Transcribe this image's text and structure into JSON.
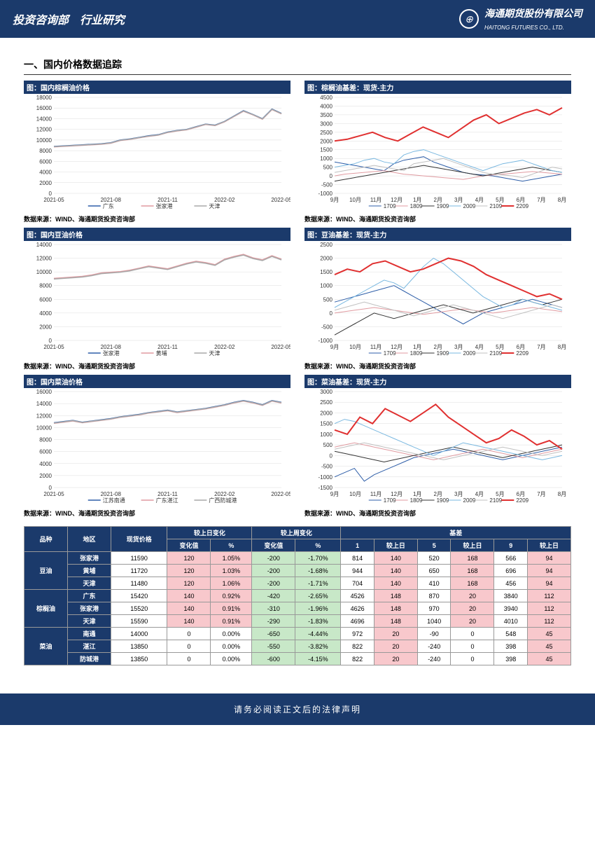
{
  "header": {
    "left": "投资咨询部　行业研究",
    "company_cn": "海通期货股份有限公司",
    "company_en": "HAITONG FUTURES CO., LTD."
  },
  "section_title": "一、国内价格数据追踪",
  "source": "数据来源：WIND、海通期货投资咨询部",
  "charts": [
    {
      "title": "图：国内棕榈油价格",
      "ylim": [
        0,
        18000
      ],
      "ystep": 2000,
      "xlabels": [
        "2021-05",
        "2021-08",
        "2021-11",
        "2022-02",
        "2022-05"
      ],
      "series": [
        {
          "name": "广东",
          "color": "#2e5ea8",
          "w": 1.5,
          "d": [
            8800,
            8900,
            9000,
            9100,
            9200,
            9300,
            9500,
            10000,
            10200,
            10500,
            10800,
            11000,
            11500,
            11800,
            12000,
            12500,
            13000,
            12800,
            13500,
            14500,
            15500,
            14800,
            14000,
            15800,
            15000
          ]
        },
        {
          "name": "张家港",
          "color": "#e09aa0",
          "w": 1.5,
          "d": [
            8700,
            8800,
            8900,
            9000,
            9100,
            9200,
            9400,
            9900,
            10100,
            10400,
            10700,
            10900,
            11400,
            11700,
            11900,
            12400,
            12900,
            12700,
            13400,
            14400,
            15400,
            14700,
            13900,
            15700,
            14900
          ]
        },
        {
          "name": "天津",
          "color": "#a9a9a9",
          "w": 1.5,
          "d": [
            8750,
            8850,
            8950,
            9050,
            9150,
            9250,
            9450,
            9950,
            10150,
            10450,
            10750,
            10950,
            11450,
            11750,
            11950,
            12450,
            12950,
            12750,
            13450,
            14450,
            15450,
            14750,
            13950,
            15750,
            14950
          ]
        }
      ]
    },
    {
      "title": "图：棕榈油基差：现货-主力",
      "ylim": [
        -1000,
        4500
      ],
      "ystep": 500,
      "xlabels": [
        "9月",
        "10月",
        "11月",
        "12月",
        "1月",
        "2月",
        "3月",
        "4月",
        "5月",
        "6月",
        "7月",
        "8月"
      ],
      "series": [
        {
          "name": "1709",
          "color": "#2e5ea8",
          "w": 1,
          "d": [
            800,
            700,
            600,
            500,
            400,
            300,
            700,
            900,
            1000,
            1100,
            800,
            600,
            400,
            200,
            100,
            50,
            0,
            -100,
            -200,
            -300,
            -200,
            -100,
            0,
            100
          ]
        },
        {
          "name": "1809",
          "color": "#e09aa0",
          "w": 1,
          "d": [
            0,
            100,
            150,
            200,
            250,
            300,
            200,
            100,
            50,
            0,
            -50,
            -100,
            -150,
            -200,
            -100,
            0,
            50,
            100,
            150,
            200,
            250,
            200,
            150,
            100
          ]
        },
        {
          "name": "1909",
          "color": "#333",
          "w": 1,
          "d": [
            -300,
            -200,
            -100,
            0,
            100,
            200,
            300,
            400,
            500,
            600,
            500,
            400,
            300,
            200,
            100,
            0,
            100,
            200,
            300,
            400,
            500,
            400,
            300,
            200
          ]
        },
        {
          "name": "2009",
          "color": "#7ab8e0",
          "w": 1,
          "d": [
            500,
            600,
            700,
            900,
            1000,
            800,
            700,
            1200,
            1400,
            1500,
            1300,
            1100,
            900,
            700,
            500,
            300,
            500,
            700,
            800,
            900,
            700,
            500,
            300,
            200
          ]
        },
        {
          "name": "2109",
          "color": "#c0c0c0",
          "w": 1,
          "d": [
            200,
            300,
            400,
            500,
            600,
            500,
            400,
            300,
            700,
            800,
            900,
            1000,
            800,
            600,
            400,
            200,
            100,
            50,
            0,
            -100,
            100,
            300,
            500,
            400
          ]
        },
        {
          "name": "2209",
          "color": "#e03030",
          "w": 2,
          "d": [
            2000,
            2100,
            2300,
            2500,
            2200,
            2000,
            2400,
            2800,
            2500,
            2200,
            2700,
            3200,
            3500,
            3000,
            3300,
            3600,
            3800,
            3500,
            3900
          ]
        }
      ]
    },
    {
      "title": "图：国内豆油价格",
      "ylim": [
        0,
        14000
      ],
      "ystep": 2000,
      "xlabels": [
        "2021-05",
        "2021-08",
        "2021-11",
        "2022-02",
        "2022-05"
      ],
      "series": [
        {
          "name": "张家港",
          "color": "#2e5ea8",
          "w": 1.5,
          "d": [
            9000,
            9100,
            9200,
            9300,
            9500,
            9800,
            9900,
            10000,
            10200,
            10500,
            10800,
            10600,
            10400,
            10800,
            11200,
            11500,
            11300,
            11000,
            11800,
            12200,
            12500,
            12000,
            11700,
            12300,
            11800
          ]
        },
        {
          "name": "黄埔",
          "color": "#e09aa0",
          "w": 1.5,
          "d": [
            9050,
            9150,
            9250,
            9350,
            9550,
            9850,
            9950,
            10050,
            10250,
            10550,
            10850,
            10650,
            10450,
            10850,
            11250,
            11550,
            11350,
            11050,
            11850,
            12250,
            12550,
            12050,
            11750,
            12350,
            11850
          ]
        },
        {
          "name": "天津",
          "color": "#a9a9a9",
          "w": 1.5,
          "d": [
            8950,
            9050,
            9150,
            9250,
            9450,
            9750,
            9850,
            9950,
            10150,
            10450,
            10750,
            10550,
            10350,
            10750,
            11150,
            11450,
            11250,
            10950,
            11750,
            12150,
            12450,
            11950,
            11650,
            12250,
            11750
          ]
        }
      ]
    },
    {
      "title": "图：豆油基差：现货-主力",
      "ylim": [
        -1000,
        2500
      ],
      "ystep": 500,
      "xlabels": [
        "9月",
        "10月",
        "11月",
        "12月",
        "1月",
        "2月",
        "3月",
        "4月",
        "5月",
        "6月",
        "7月",
        "8月"
      ],
      "series": [
        {
          "name": "1709",
          "color": "#2e5ea8",
          "w": 1,
          "d": [
            400,
            500,
            600,
            700,
            800,
            900,
            1000,
            800,
            600,
            400,
            200,
            0,
            -200,
            -400,
            -200,
            0,
            100,
            200,
            300,
            400,
            500,
            400,
            300,
            200
          ]
        },
        {
          "name": "1809",
          "color": "#e09aa0",
          "w": 1,
          "d": [
            0,
            50,
            100,
            150,
            200,
            150,
            100,
            50,
            0,
            -50,
            0,
            50,
            100,
            150,
            100,
            50,
            0,
            50,
            100,
            150,
            200,
            150,
            100,
            50
          ]
        },
        {
          "name": "1909",
          "color": "#333",
          "w": 1,
          "d": [
            -800,
            -600,
            -400,
            -200,
            0,
            -100,
            -200,
            -100,
            0,
            100,
            200,
            300,
            200,
            100,
            0,
            100,
            200,
            300,
            400,
            500,
            400,
            300,
            400,
            500
          ]
        },
        {
          "name": "2009",
          "color": "#7ab8e0",
          "w": 1,
          "d": [
            200,
            400,
            600,
            800,
            1000,
            1200,
            1100,
            900,
            1300,
            1700,
            2000,
            1800,
            1500,
            1200,
            900,
            600,
            400,
            200,
            300,
            500,
            400,
            300,
            200,
            100
          ]
        },
        {
          "name": "2109",
          "color": "#c0c0c0",
          "w": 1,
          "d": [
            100,
            200,
            300,
            400,
            300,
            200,
            100,
            0,
            -100,
            0,
            100,
            200,
            300,
            200,
            100,
            0,
            -100,
            -200,
            -100,
            0,
            100,
            200,
            300,
            200
          ]
        },
        {
          "name": "2209",
          "color": "#e03030",
          "w": 2,
          "d": [
            1400,
            1600,
            1500,
            1800,
            1900,
            1700,
            1500,
            1600,
            1800,
            2000,
            1900,
            1700,
            1400,
            1200,
            1000,
            800,
            600,
            700,
            500
          ]
        }
      ]
    },
    {
      "title": "图：国内菜油价格",
      "ylim": [
        0,
        16000
      ],
      "ystep": 2000,
      "xlabels": [
        "2021-05",
        "2021-08",
        "2021-11",
        "2022-02",
        "2022-05"
      ],
      "series": [
        {
          "name": "江苏南通",
          "color": "#2e5ea8",
          "w": 1.5,
          "d": [
            10800,
            11000,
            11200,
            10900,
            11100,
            11300,
            11500,
            11800,
            12000,
            12200,
            12500,
            12700,
            12900,
            12600,
            12800,
            13000,
            13200,
            13500,
            13800,
            14200,
            14500,
            14200,
            13800,
            14500,
            14200
          ]
        },
        {
          "name": "广东湛江",
          "color": "#e09aa0",
          "w": 1.5,
          "d": [
            10700,
            10900,
            11100,
            10800,
            11000,
            11200,
            11400,
            11700,
            11900,
            12100,
            12400,
            12600,
            12800,
            12500,
            12700,
            12900,
            13100,
            13400,
            13700,
            14100,
            14400,
            14100,
            13700,
            14400,
            14100
          ]
        },
        {
          "name": "广西防城港",
          "color": "#a9a9a9",
          "w": 1.5,
          "d": [
            10750,
            10950,
            11150,
            10850,
            11050,
            11250,
            11450,
            11750,
            11950,
            12150,
            12450,
            12650,
            12850,
            12550,
            12750,
            12950,
            13150,
            13450,
            13750,
            14150,
            14450,
            14150,
            13750,
            14450,
            14150
          ]
        }
      ]
    },
    {
      "title": "图：菜油基差：现货-主力",
      "ylim": [
        -1500,
        3000
      ],
      "ystep": 500,
      "xlabels": [
        "9月",
        "10月",
        "11月",
        "12月",
        "1月",
        "2月",
        "3月",
        "4月",
        "5月",
        "6月",
        "7月",
        "8月"
      ],
      "series": [
        {
          "name": "1709",
          "color": "#2e5ea8",
          "w": 1,
          "d": [
            -1000,
            -800,
            -600,
            -1200,
            -900,
            -700,
            -500,
            -300,
            -100,
            0,
            100,
            200,
            300,
            200,
            100,
            0,
            -100,
            -200,
            -100,
            0,
            100,
            200,
            300,
            400
          ]
        },
        {
          "name": "1809",
          "color": "#e09aa0",
          "w": 1,
          "d": [
            400,
            500,
            600,
            500,
            400,
            300,
            200,
            100,
            0,
            -100,
            -200,
            -100,
            0,
            100,
            200,
            300,
            200,
            100,
            0,
            -100,
            0,
            100,
            200,
            300
          ]
        },
        {
          "name": "1909",
          "color": "#333",
          "w": 1,
          "d": [
            200,
            100,
            0,
            -100,
            -200,
            -300,
            -200,
            -100,
            0,
            100,
            200,
            300,
            400,
            300,
            200,
            100,
            0,
            -100,
            0,
            100,
            200,
            300,
            400,
            500
          ]
        },
        {
          "name": "2009",
          "color": "#7ab8e0",
          "w": 1,
          "d": [
            1500,
            1700,
            1600,
            1400,
            1200,
            1000,
            800,
            600,
            400,
            200,
            0,
            200,
            400,
            600,
            500,
            400,
            300,
            200,
            100,
            0,
            -100,
            -200,
            -100,
            0
          ]
        },
        {
          "name": "2109",
          "color": "#c0c0c0",
          "w": 1,
          "d": [
            300,
            400,
            500,
            600,
            500,
            400,
            300,
            200,
            100,
            0,
            -100,
            -200,
            -100,
            0,
            100,
            200,
            300,
            400,
            300,
            200,
            100,
            0,
            100,
            200
          ]
        },
        {
          "name": "2209",
          "color": "#e03030",
          "w": 2,
          "d": [
            1200,
            1000,
            1800,
            1500,
            2200,
            1900,
            1600,
            2000,
            2400,
            1800,
            1400,
            1000,
            600,
            800,
            1200,
            900,
            500,
            700,
            300
          ]
        }
      ]
    }
  ],
  "table": {
    "hdr1": [
      "品种",
      "地区",
      "现货价格",
      "较上日变化",
      "",
      "较上周变化",
      "",
      "基差",
      "",
      "",
      "",
      "",
      ""
    ],
    "hdr2": [
      "",
      "",
      "",
      "变化值",
      "%",
      "变化值",
      "%",
      "1",
      "较上日",
      "5",
      "较上日",
      "9",
      "较上日"
    ],
    "groups": [
      {
        "name": "豆油",
        "rows": [
          [
            "张家港",
            "11590",
            "120",
            "1.05%",
            "-200",
            "-1.70%",
            "814",
            "140",
            "520",
            "168",
            "566",
            "94"
          ],
          [
            "黄埔",
            "11720",
            "120",
            "1.03%",
            "-200",
            "-1.68%",
            "944",
            "140",
            "650",
            "168",
            "696",
            "94"
          ],
          [
            "天津",
            "11480",
            "120",
            "1.06%",
            "-200",
            "-1.71%",
            "704",
            "140",
            "410",
            "168",
            "456",
            "94"
          ]
        ]
      },
      {
        "name": "棕榈油",
        "rows": [
          [
            "广东",
            "15420",
            "140",
            "0.92%",
            "-420",
            "-2.65%",
            "4526",
            "148",
            "870",
            "20",
            "3840",
            "112"
          ],
          [
            "张家港",
            "15520",
            "140",
            "0.91%",
            "-310",
            "-1.96%",
            "4626",
            "148",
            "970",
            "20",
            "3940",
            "112"
          ],
          [
            "天津",
            "15590",
            "140",
            "0.91%",
            "-290",
            "-1.83%",
            "4696",
            "148",
            "1040",
            "20",
            "4010",
            "112"
          ]
        ]
      },
      {
        "name": "菜油",
        "rows": [
          [
            "南通",
            "14000",
            "0",
            "0.00%",
            "-650",
            "-4.44%",
            "972",
            "20",
            "-90",
            "0",
            "548",
            "45"
          ],
          [
            "湛江",
            "13850",
            "0",
            "0.00%",
            "-550",
            "-3.82%",
            "822",
            "20",
            "-240",
            "0",
            "398",
            "45"
          ],
          [
            "防城港",
            "13850",
            "0",
            "0.00%",
            "-600",
            "-4.15%",
            "822",
            "20",
            "-240",
            "0",
            "398",
            "45"
          ]
        ]
      }
    ],
    "pos_cols": [
      2,
      3,
      7,
      9,
      11
    ],
    "neg_cols": [
      4,
      5
    ]
  },
  "footer": "请务必阅读正文后的法律声明"
}
